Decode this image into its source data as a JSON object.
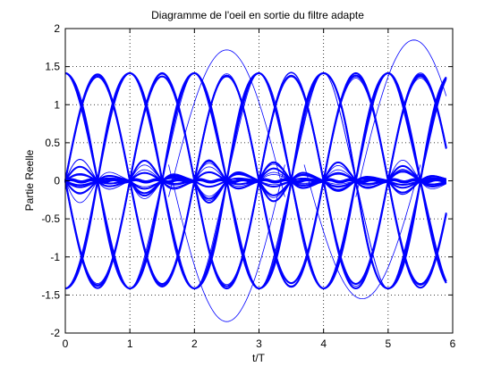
{
  "chart_data": {
    "type": "line",
    "title": "Diagramme de l'oeil en sortie du filtre adapte",
    "xlabel": "t/T",
    "ylabel": "Partie Reelle",
    "xlim": [
      0,
      6
    ],
    "ylim": [
      -2,
      2
    ],
    "xticks": [
      "0",
      "1",
      "2",
      "3",
      "4",
      "5",
      "6"
    ],
    "yticks": [
      "2",
      "1.5",
      "1",
      "0.5",
      "0",
      "-0.5",
      "-1",
      "-1.5",
      "-2"
    ],
    "grid": true,
    "grid_style": "dotted",
    "series_color": "#0000ff",
    "background": "#ffffff",
    "x_max_data": 5.9,
    "symbol_levels": [
      -1.414,
      0,
      1.414
    ],
    "overshoot_peaks": [
      {
        "x": 2.5,
        "y": 1.72
      },
      {
        "x": 2.5,
        "y": -1.85
      },
      {
        "x": 5.4,
        "y": 1.85
      },
      {
        "x": 4.6,
        "y": -1.55
      }
    ],
    "description_of_traces": "Overlaid eye-diagram traces of a matched-filter output sampled at integer t/T; traces pass through -1.41, 0 and +1.41 at each symbol instant and form multiple eyes per period."
  }
}
